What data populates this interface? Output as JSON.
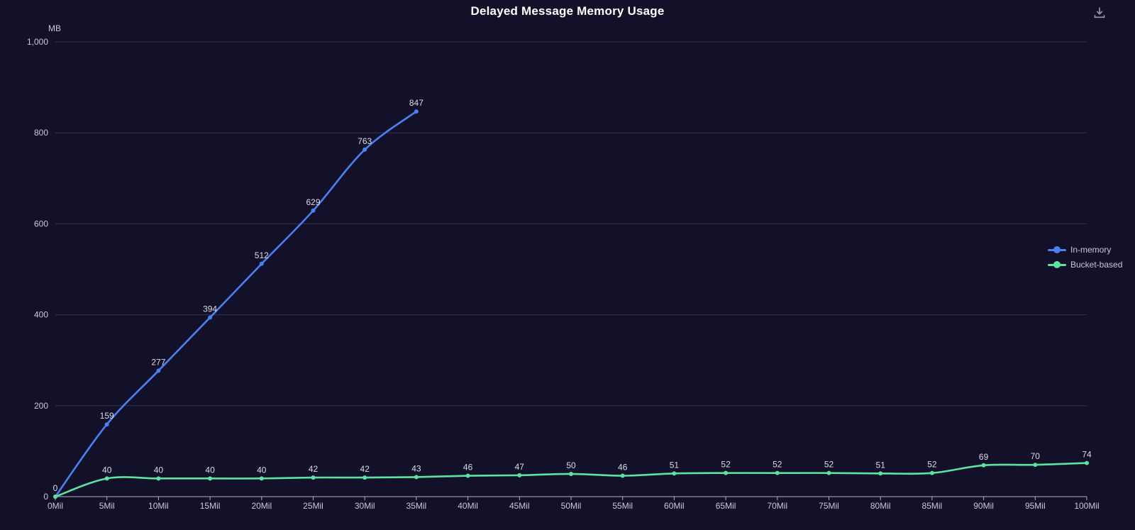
{
  "header": {
    "title": "Delayed Message Memory Usage"
  },
  "toolbar": {
    "download_tooltip": "Save as image"
  },
  "legend": {
    "items": [
      {
        "label": "In-memory",
        "color": "#4a80f0"
      },
      {
        "label": "Bucket-based",
        "color": "#5ce3a0"
      }
    ]
  },
  "chart_data": {
    "type": "line",
    "title": "Delayed Message Memory Usage",
    "x_categories": [
      "0Mil",
      "5Mil",
      "10Mil",
      "15Mil",
      "20Mil",
      "25Mil",
      "30Mil",
      "35Mil",
      "40Mil",
      "45Mil",
      "50Mil",
      "55Mil",
      "60Mil",
      "65Mil",
      "70Mil",
      "75Mil",
      "80Mil",
      "85Mil",
      "90Mil",
      "95Mil",
      "100Mil"
    ],
    "series": [
      {
        "name": "In-memory",
        "color": "#4a80f0",
        "values": [
          0,
          159,
          277,
          394,
          512,
          629,
          763,
          847
        ]
      },
      {
        "name": "Bucket-based",
        "color": "#5ce3a0",
        "values": [
          0,
          40,
          40,
          40,
          40,
          42,
          42,
          43,
          46,
          47,
          50,
          46,
          51,
          52,
          52,
          52,
          51,
          52,
          69,
          70,
          74
        ]
      }
    ],
    "ylabel_unit": "MB",
    "ylim": [
      0,
      1000
    ],
    "y_ticks": [
      "0",
      "200",
      "400",
      "600",
      "800",
      "1,000"
    ],
    "y_tick_values": [
      0,
      200,
      400,
      600,
      800,
      1000
    ],
    "grid": true,
    "smooth": true,
    "point_labels": true,
    "legend_position": "right"
  },
  "colors": {
    "background": "#131129",
    "grid": "#36334e",
    "axis": "#b2b1c0",
    "tick_label": "#c9c8d5",
    "data_label": "#dcdbe5",
    "title": "#ffffff",
    "icon": "#9b99ad"
  }
}
